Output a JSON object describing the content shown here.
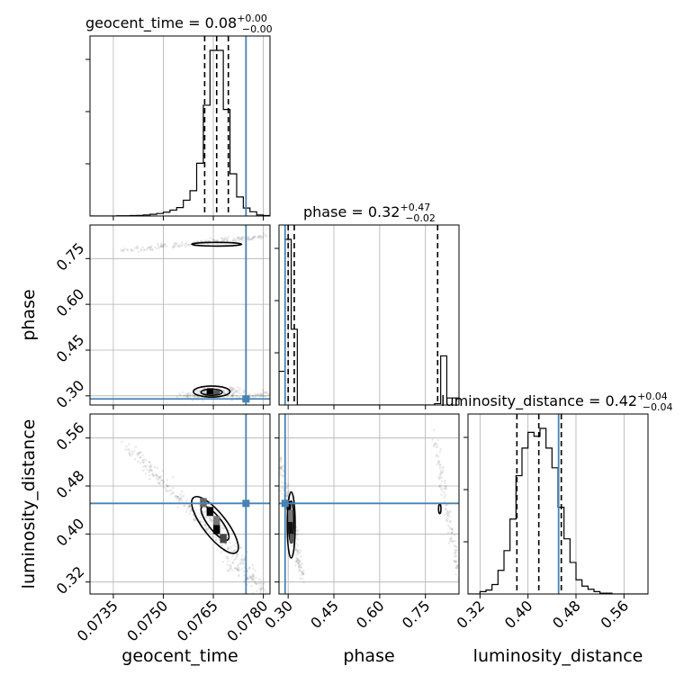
{
  "chart_data": {
    "type": "corner",
    "params": [
      {
        "name": "geocent_time",
        "title_prefix": "geocent_time = ",
        "median": "0.08",
        "err_plus": "+0.00",
        "err_minus": "−0.00",
        "range": [
          0.0728,
          0.0782
        ],
        "ticks": [
          0.0735,
          0.075,
          0.0765,
          0.078
        ],
        "tick_labels": [
          "0.0735",
          "0.0750",
          "0.0765",
          "0.0780"
        ],
        "quantiles": [
          0.07624,
          0.0766,
          0.07695
        ],
        "truth": 0.07748,
        "hist_edges": [
          0.0728,
          0.073,
          0.0732,
          0.0734,
          0.0736,
          0.0738,
          0.074,
          0.0742,
          0.0744,
          0.0746,
          0.0748,
          0.075,
          0.0752,
          0.0754,
          0.0756,
          0.0758,
          0.076,
          0.0762,
          0.0764,
          0.0766,
          0.0768,
          0.077,
          0.0772,
          0.0774,
          0.0776,
          0.0778,
          0.078,
          0.0782
        ],
        "hist_counts": [
          0,
          0,
          0,
          0,
          1,
          1,
          2,
          3,
          5,
          8,
          12,
          18,
          28,
          40,
          75,
          120,
          250,
          525,
          785,
          785,
          505,
          200,
          90,
          38,
          20,
          5,
          2
        ]
      },
      {
        "name": "phase",
        "title_prefix": "phase = ",
        "median": "0.32",
        "err_plus": "+0.47",
        "err_minus": "−0.02",
        "range": [
          0.27,
          0.86
        ],
        "ticks": [
          0.3,
          0.45,
          0.6,
          0.75
        ],
        "tick_labels": [
          "0.30",
          "0.45",
          "0.60",
          "0.75"
        ],
        "quantiles": [
          0.3,
          0.32,
          0.79
        ],
        "truth": 0.29,
        "hist_edges": [
          0.27,
          0.29,
          0.31,
          0.33,
          0.36,
          0.38,
          0.4,
          0.42,
          0.44,
          0.46,
          0.48,
          0.5,
          0.52,
          0.54,
          0.56,
          0.58,
          0.6,
          0.62,
          0.64,
          0.66,
          0.68,
          0.7,
          0.72,
          0.74,
          0.76,
          0.78,
          0.8,
          0.82,
          0.86
        ],
        "hist_counts": [
          120,
          590,
          270,
          0,
          0,
          0,
          0,
          0,
          0,
          0,
          0,
          0,
          0,
          0,
          0,
          0,
          0,
          0,
          0,
          0,
          0,
          0,
          0,
          0,
          0,
          5,
          175,
          25
        ]
      },
      {
        "name": "luminosity_distance",
        "title_prefix": "luminosity_distance = ",
        "median": "0.42",
        "err_plus": "+0.04",
        "err_minus": "−0.04",
        "range": [
          0.3,
          0.6
        ],
        "ticks": [
          0.32,
          0.4,
          0.48,
          0.56
        ],
        "tick_labels": [
          "0.32",
          "0.40",
          "0.48",
          "0.56"
        ],
        "quantiles": [
          0.3815,
          0.418,
          0.4555
        ],
        "truth": 0.451,
        "hist_edges": [
          0.3,
          0.31,
          0.32,
          0.33,
          0.34,
          0.35,
          0.36,
          0.37,
          0.38,
          0.39,
          0.4,
          0.41,
          0.42,
          0.43,
          0.44,
          0.45,
          0.46,
          0.47,
          0.48,
          0.49,
          0.5,
          0.51,
          0.52,
          0.53,
          0.54,
          0.55,
          0.56,
          0.57,
          0.58,
          0.59,
          0.6
        ],
        "hist_counts": [
          0,
          0,
          3,
          5,
          12,
          30,
          55,
          95,
          150,
          185,
          205,
          200,
          210,
          185,
          160,
          110,
          70,
          40,
          18,
          10,
          6,
          3,
          1,
          1,
          0,
          0,
          0,
          0,
          0,
          0
        ]
      }
    ],
    "truth_color": "#4682b4",
    "dashed_quantiles": true
  }
}
